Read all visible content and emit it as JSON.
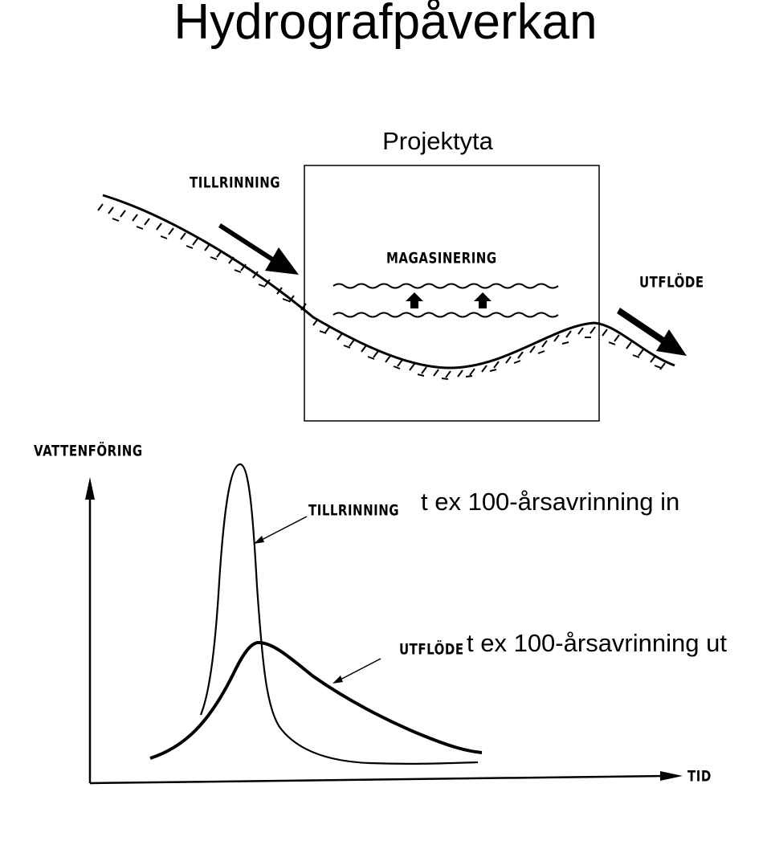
{
  "title": "Hydrografpåverkan",
  "top_diagram": {
    "box_label": "Projektyta",
    "inflow_label": "TILLRINNING",
    "storage_label": "MAGASINERING",
    "outflow_label": "UTFLÖDE"
  },
  "hydrograph": {
    "y_axis_label": "VATTENFÖRING",
    "x_axis_label": "TID",
    "inflow_label": "TILLRINNING",
    "inflow_caption": "t ex 100-årsavrinning in",
    "outflow_label": "UTFLÖDE",
    "outflow_caption": "t ex 100-årsavrinning ut"
  }
}
